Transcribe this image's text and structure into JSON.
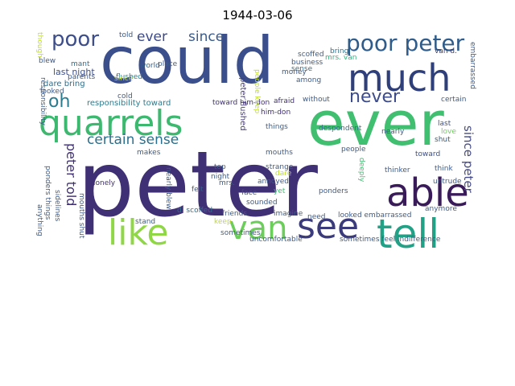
{
  "title": "1944-03-06",
  "words": [
    {
      "text": "peter",
      "color": "#3f2f74"
    },
    {
      "text": "could",
      "color": "#3b4f8c"
    },
    {
      "text": "ever",
      "color": "#3fbf6f"
    },
    {
      "text": "much",
      "color": "#2f3f7a"
    },
    {
      "text": "quarrels",
      "color": "#3cb86f"
    },
    {
      "text": "able",
      "color": "#3a1b5a"
    },
    {
      "text": "tell",
      "color": "#22a187"
    },
    {
      "text": "van",
      "color": "#6cce5a"
    },
    {
      "text": "see",
      "color": "#3b3a7a"
    },
    {
      "text": "like",
      "color": "#8fd744"
    },
    {
      "text": "poor peter",
      "color": "#2f5c8a"
    },
    {
      "text": "poor",
      "color": "#3d4e8a"
    },
    {
      "text": "oh",
      "color": "#2a7b8e"
    },
    {
      "text": "never",
      "color": "#3d4b8a"
    },
    {
      "text": "certain sense",
      "color": "#2a6f8e"
    },
    {
      "text": "ever",
      "color": "#3d4a89"
    },
    {
      "text": "since",
      "color": "#3a5a8c"
    },
    {
      "text": "peter told",
      "color": "#3f2f74"
    },
    {
      "text": "since peter",
      "color": "#444a86"
    },
    {
      "text": "peter flushed",
      "color": "#4a3b80"
    },
    {
      "text": "responsibility toward",
      "color": "#2f7b8d"
    },
    {
      "text": "last night",
      "color": "#3b4f8c"
    },
    {
      "text": "dare bring",
      "color": "#2f6f8e"
    },
    {
      "text": "world",
      "color": "#2f5d8c"
    },
    {
      "text": "mant",
      "color": "#2e6e8e"
    },
    {
      "text": "parents",
      "color": "#3b5a8c"
    },
    {
      "text": "looked",
      "color": "#3d5b8a"
    },
    {
      "text": "flushed",
      "color": "#2a7b8e"
    },
    {
      "text": "blew",
      "color": "#3d5b8a"
    },
    {
      "text": "though",
      "color": "#bddf26"
    },
    {
      "text": "told",
      "color": "#3a5a8c"
    },
    {
      "text": "place",
      "color": "#3d5b8a"
    },
    {
      "text": "business",
      "color": "#3b5a8c"
    },
    {
      "text": "money",
      "color": "#3d5b8a"
    },
    {
      "text": "bring",
      "color": "#2f6f8e"
    },
    {
      "text": "mrs. van",
      "color": "#2fb47c"
    },
    {
      "text": "van d.",
      "color": "#3b3a7a"
    },
    {
      "text": "embarrassed",
      "color": "#3d5b8a"
    },
    {
      "text": "scoffed",
      "color": "#3d5b8a"
    },
    {
      "text": "sense",
      "color": "#2f6f8e"
    },
    {
      "text": "among",
      "color": "#3d5b8a"
    },
    {
      "text": "afraid",
      "color": "#3f2f74"
    },
    {
      "text": "without",
      "color": "#3d5b8a"
    },
    {
      "text": "certain",
      "color": "#3b5a8c"
    },
    {
      "text": "toward him-don",
      "color": "#3f2f74"
    },
    {
      "text": "him-don",
      "color": "#3f2f74"
    },
    {
      "text": "things",
      "color": "#3d5b8a"
    },
    {
      "text": "despondent",
      "color": "#2f6f8e"
    },
    {
      "text": "nearly",
      "color": "#3d5b8a"
    },
    {
      "text": "last",
      "color": "#3b4f8c"
    },
    {
      "text": "love",
      "color": "#6cce5a"
    },
    {
      "text": "shut",
      "color": "#2f5c8a"
    },
    {
      "text": "makes",
      "color": "#3d5b8a"
    },
    {
      "text": "mouths",
      "color": "#3d5b8a"
    },
    {
      "text": "people",
      "color": "#3d5b8a"
    },
    {
      "text": "toward",
      "color": "#3b4f8c"
    },
    {
      "text": "think",
      "color": "#3d5b8a"
    },
    {
      "text": "thinker",
      "color": "#3d5b8a"
    },
    {
      "text": "strange",
      "color": "#3d5b8a"
    },
    {
      "text": "deeply",
      "color": "#3fbf6f"
    },
    {
      "text": "untrude",
      "color": "#3d5b8a"
    },
    {
      "text": "dare",
      "color": "#bddf26"
    },
    {
      "text": "lonely",
      "color": "#3f2f74"
    },
    {
      "text": "felt",
      "color": "#3d5b8a"
    },
    {
      "text": "face",
      "color": "#3b4f8c"
    },
    {
      "text": "annoyed",
      "color": "#3d5b8a"
    },
    {
      "text": "yet",
      "color": "#3fbf6f"
    },
    {
      "text": "ponders",
      "color": "#3d5b8a"
    },
    {
      "text": "nearly blew",
      "color": "#3d5b8a"
    },
    {
      "text": "top",
      "color": "#3d5b8a"
    },
    {
      "text": "night",
      "color": "#3d5b8a"
    },
    {
      "text": "sidelines",
      "color": "#3d5b8a"
    },
    {
      "text": "d. scoffed",
      "color": "#2f6f8e"
    },
    {
      "text": "imagine",
      "color": "#3d5b8a"
    },
    {
      "text": "anymore",
      "color": "#3d5b8a"
    },
    {
      "text": "looked embarrassed",
      "color": "#3d5b8a"
    },
    {
      "text": "stand",
      "color": "#3d5b8a"
    },
    {
      "text": "keep",
      "color": "#bddf26"
    },
    {
      "text": "uncomfortable",
      "color": "#3d5b8a"
    },
    {
      "text": "ponders things",
      "color": "#3d5b8a"
    },
    {
      "text": "anything",
      "color": "#3d5b8a"
    },
    {
      "text": "responsibility",
      "color": "#3d5b8a"
    },
    {
      "text": "mouths shut",
      "color": "#3d5b8a"
    },
    {
      "text": "friends",
      "color": "#3d5b8a"
    },
    {
      "text": "mrs.",
      "color": "#3d5b8a"
    },
    {
      "text": "sometimes",
      "color": "#3d5b8a"
    },
    {
      "text": "since",
      "color": "#bddf26"
    },
    {
      "text": "people keep",
      "color": "#bddf26"
    },
    {
      "text": "cold",
      "color": "#3d5b8a"
    },
    {
      "text": "sounded",
      "color": "#3d5b8a"
    },
    {
      "text": "need",
      "color": "#3d5b8a"
    },
    {
      "text": "sometimes feel indifference",
      "color": "#3d5b8a"
    }
  ]
}
